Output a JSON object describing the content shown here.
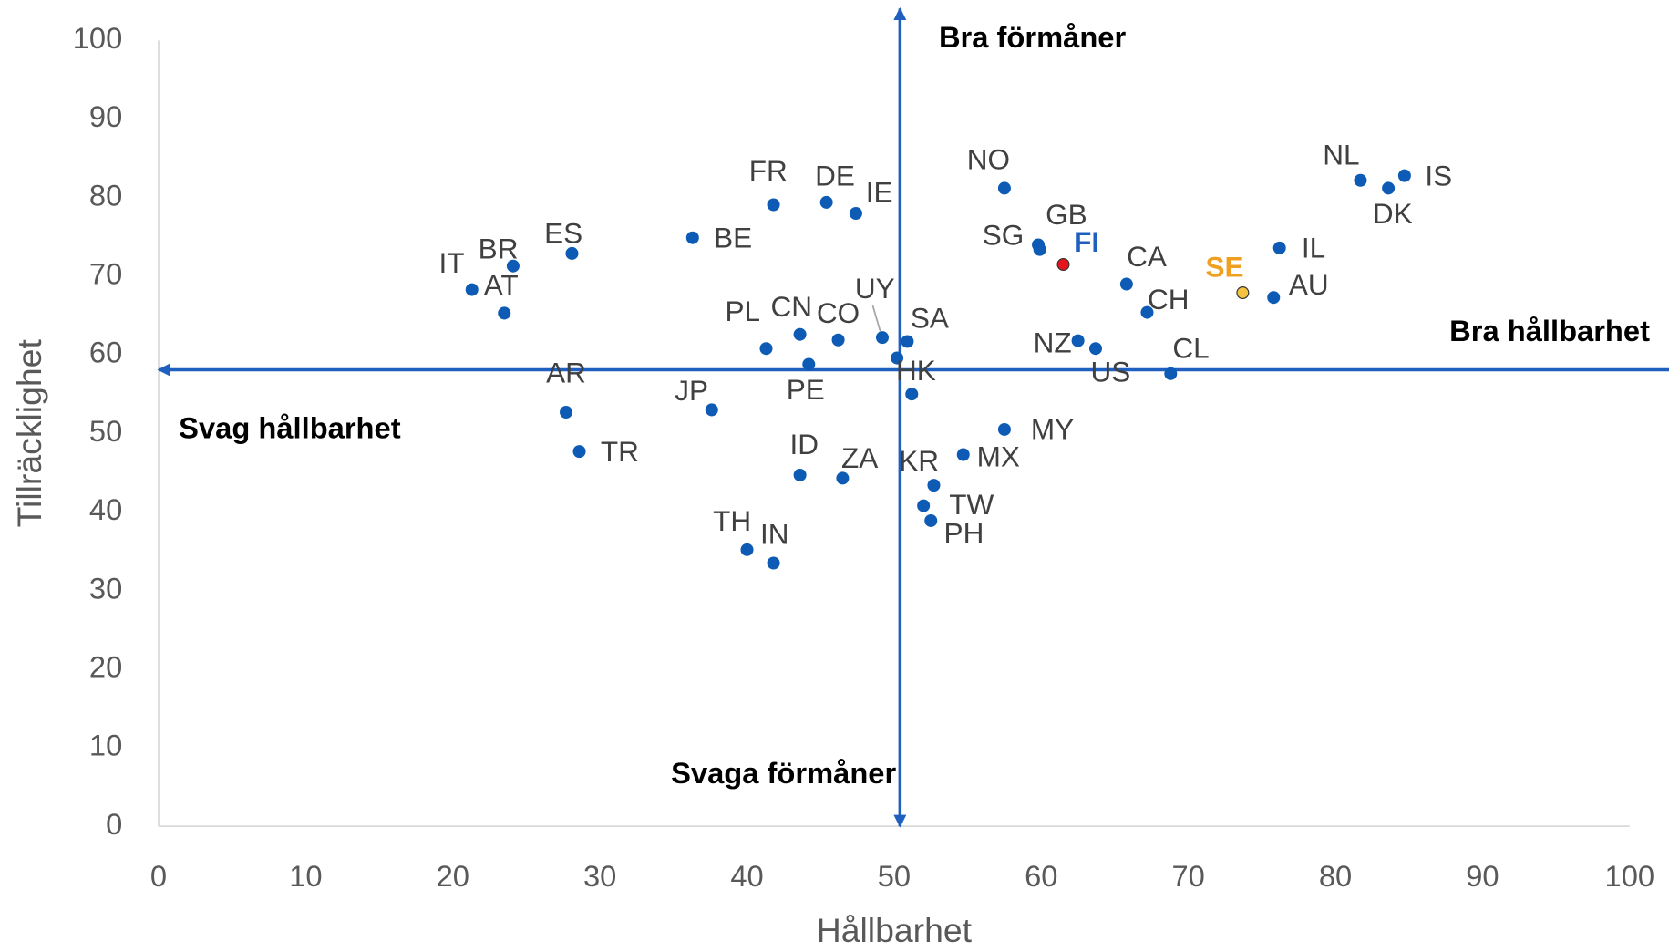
{
  "chart_data": {
    "type": "scatter",
    "x_label": "Hållbarhet",
    "y_label": "Tillräcklighet",
    "xlim": [
      0,
      100
    ],
    "ylim": [
      0,
      100
    ],
    "xticks": [
      0,
      10,
      20,
      30,
      40,
      50,
      60,
      70,
      80,
      90,
      100
    ],
    "yticks": [
      0,
      10,
      20,
      30,
      40,
      50,
      60,
      70,
      80,
      90,
      100
    ],
    "reference_lines": {
      "x": 50.4,
      "y": 58.1
    },
    "annotations": {
      "top": "Bra förmåner",
      "bottom": "Svaga förmåner",
      "right": "Bra hållbarhet",
      "left": "Svag hållbarhet"
    },
    "color": "#0d5bb5",
    "line_color": "#1f5fbf",
    "label_color": "#404040",
    "labels": [
      "IT",
      "BR",
      "AT",
      "ES",
      "BE",
      "FR",
      "DE",
      "IE",
      "NO",
      "SG",
      "GB",
      "FI",
      "CA",
      "CH",
      "SE",
      "IL",
      "AU",
      "NL",
      "DK",
      "IS",
      "PL",
      "CN",
      "CO",
      "PE",
      "UY",
      "SA",
      null,
      "HK",
      "NZ",
      "US",
      "CL",
      "AR",
      "TR",
      "JP",
      "ID",
      "ZA",
      "KR",
      "MX",
      "MY",
      "TW",
      "PH",
      "TH",
      "IN"
    ],
    "x": [
      21.3,
      24.1,
      23.5,
      28.1,
      36.3,
      41.8,
      45.4,
      47.4,
      57.5,
      59.8,
      59.9,
      61.5,
      65.8,
      67.2,
      73.7,
      76.2,
      75.8,
      81.7,
      83.6,
      84.7,
      41.3,
      43.6,
      46.2,
      44.2,
      49.2,
      50.9,
      50.2,
      51.2,
      62.5,
      63.7,
      68.8,
      27.7,
      28.6,
      37.6,
      43.6,
      46.5,
      52.7,
      54.7,
      57.5,
      52.0,
      52.5,
      40.0,
      41.8
    ],
    "values": [
      68.3,
      71.3,
      65.3,
      72.9,
      74.9,
      79.1,
      79.4,
      78.0,
      81.2,
      74.0,
      73.4,
      71.5,
      69.0,
      65.4,
      67.9,
      73.6,
      67.3,
      82.2,
      81.2,
      82.8,
      60.8,
      62.6,
      61.9,
      58.8,
      62.2,
      61.7,
      59.6,
      55.0,
      61.8,
      60.8,
      57.6,
      52.7,
      47.7,
      53.0,
      44.7,
      44.3,
      43.4,
      47.3,
      50.5,
      40.8,
      38.9,
      35.2,
      33.5
    ],
    "point_colors": {
      "11": "#e8141c",
      "14": "#f5c242"
    },
    "label_colors": {
      "11": "#1f5fbf",
      "14": "#f0a020"
    }
  }
}
